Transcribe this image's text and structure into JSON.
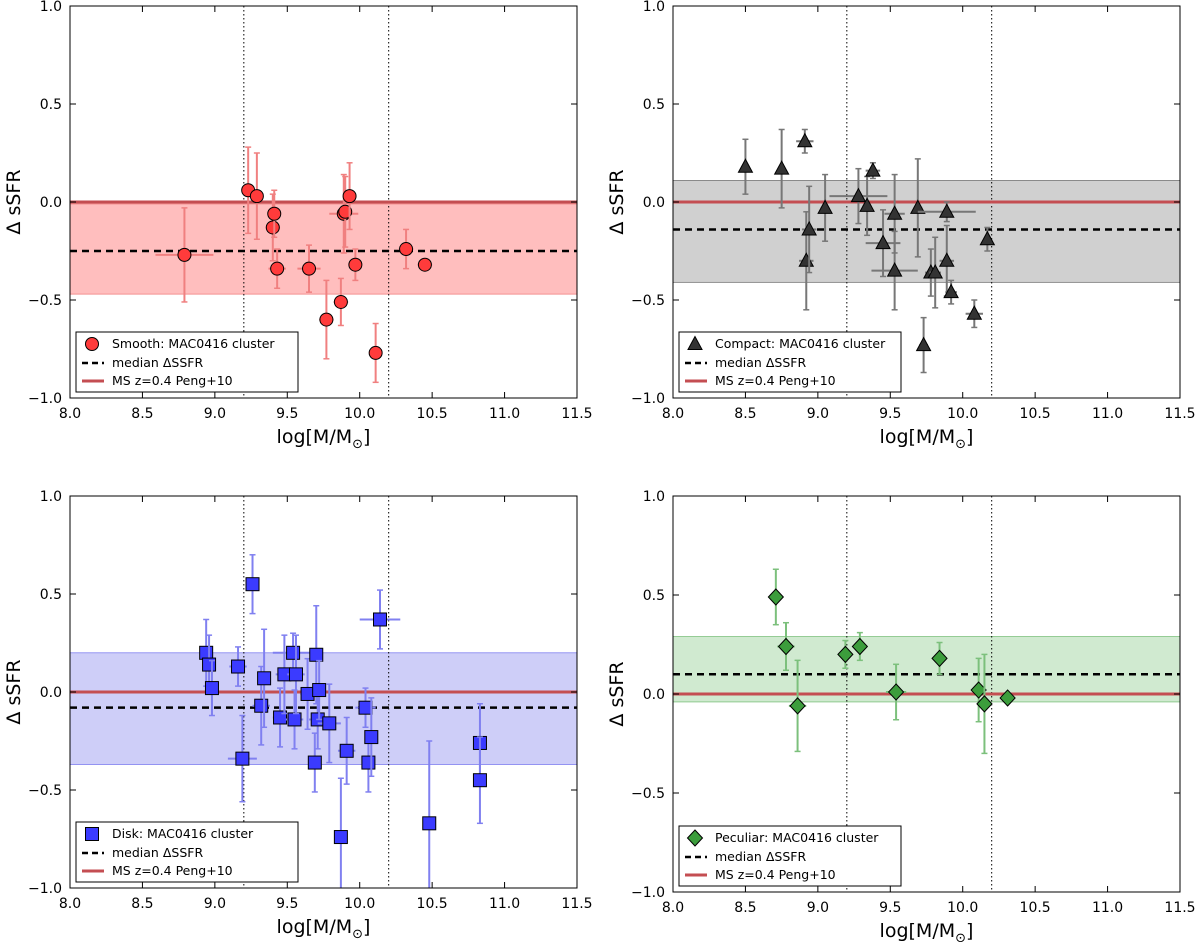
{
  "figure": {
    "ylabel": "Δ sSFR",
    "xlabel_main": "log[M/M",
    "xlabel_sub": "⊙",
    "xlabel_close": "]",
    "xlim": [
      8.0,
      11.5
    ],
    "ylim": [
      -1.0,
      1.0
    ],
    "xticks": [
      "8.0",
      "8.5",
      "9.0",
      "9.5",
      "10.0",
      "10.5",
      "11.0",
      "11.5"
    ],
    "yticks": [
      "−1.0",
      "−0.5",
      "0.0",
      "0.5",
      "1.0"
    ],
    "xtick_values": [
      8.0,
      8.5,
      9.0,
      9.5,
      10.0,
      10.5,
      11.0,
      11.5
    ],
    "ytick_values": [
      -1.0,
      -0.5,
      0.0,
      0.5,
      1.0
    ],
    "vlines": [
      9.2,
      10.2
    ],
    "legend_median": "median ΔSSFR",
    "legend_ms": "MS z=0.4 Peng+10",
    "ms_color": "#c44e52"
  },
  "chart_data": [
    {
      "type": "scatter",
      "title": "Smooth",
      "legend_label": "Smooth: MAC0416 cluster",
      "marker": "circle",
      "color": "#ff3b3b",
      "errcolor": "#f08080",
      "band_color": "#ffb3b3",
      "band": [
        -0.47,
        -0.01
      ],
      "median": -0.25,
      "ms_line": 0.0,
      "xlim": [
        8.0,
        11.5
      ],
      "ylim": [
        -1.0,
        1.0
      ],
      "points": [
        {
          "x": 8.79,
          "y": -0.27,
          "xerr": 0.2,
          "yerr": 0.24
        },
        {
          "x": 9.23,
          "y": 0.06,
          "xerr": 0.03,
          "yerr": 0.22
        },
        {
          "x": 9.29,
          "y": 0.03,
          "xerr": 0.03,
          "yerr": 0.22
        },
        {
          "x": 9.4,
          "y": -0.13,
          "xerr": 0.05,
          "yerr": 0.17
        },
        {
          "x": 9.41,
          "y": -0.06,
          "xerr": 0.03,
          "yerr": 0.12
        },
        {
          "x": 9.43,
          "y": -0.34,
          "xerr": 0.06,
          "yerr": 0.1
        },
        {
          "x": 9.65,
          "y": -0.34,
          "xerr": 0.08,
          "yerr": 0.12
        },
        {
          "x": 9.77,
          "y": -0.6,
          "xerr": 0.05,
          "yerr": 0.2
        },
        {
          "x": 9.87,
          "y": -0.51,
          "xerr": 0.05,
          "yerr": 0.12
        },
        {
          "x": 9.89,
          "y": -0.06,
          "xerr": 0.1,
          "yerr": 0.2
        },
        {
          "x": 9.9,
          "y": -0.05,
          "xerr": 0.04,
          "yerr": 0.18
        },
        {
          "x": 9.93,
          "y": 0.03,
          "xerr": 0.03,
          "yerr": 0.17
        },
        {
          "x": 9.97,
          "y": -0.32,
          "xerr": 0.04,
          "yerr": 0.08
        },
        {
          "x": 10.11,
          "y": -0.77,
          "xerr": 0.04,
          "yerr": 0.15
        },
        {
          "x": 10.32,
          "y": -0.24,
          "xerr": 0.05,
          "yerr": 0.1
        },
        {
          "x": 10.45,
          "y": -0.32,
          "xerr": 0.05,
          "yerr": 0.0
        }
      ]
    },
    {
      "type": "scatter",
      "title": "Compact",
      "legend_label": "Compact: MAC0416 cluster",
      "marker": "triangle",
      "color": "#333333",
      "errcolor": "#777777",
      "band_color": "#c8c8c8",
      "band": [
        -0.41,
        0.11
      ],
      "median": -0.14,
      "ms_line": 0.0,
      "xlim": [
        8.0,
        11.5
      ],
      "ylim": [
        -1.0,
        1.0
      ],
      "points": [
        {
          "x": 8.5,
          "y": 0.18,
          "xerr": 0.0,
          "yerr": 0.14
        },
        {
          "x": 8.75,
          "y": 0.17,
          "xerr": 0.0,
          "yerr": 0.2
        },
        {
          "x": 8.91,
          "y": 0.31,
          "xerr": 0.06,
          "yerr": 0.06
        },
        {
          "x": 8.92,
          "y": -0.3,
          "xerr": 0.05,
          "yerr": 0.25
        },
        {
          "x": 8.94,
          "y": -0.14,
          "xerr": 0.05,
          "yerr": 0.22
        },
        {
          "x": 9.05,
          "y": -0.03,
          "xerr": 0.03,
          "yerr": 0.17
        },
        {
          "x": 9.28,
          "y": 0.03,
          "xerr": 0.2,
          "yerr": 0.14
        },
        {
          "x": 9.34,
          "y": -0.02,
          "xerr": 0.03,
          "yerr": 0.15
        },
        {
          "x": 9.38,
          "y": 0.16,
          "xerr": 0.05,
          "yerr": 0.04
        },
        {
          "x": 9.45,
          "y": -0.21,
          "xerr": 0.12,
          "yerr": 0.17
        },
        {
          "x": 9.53,
          "y": -0.35,
          "xerr": 0.16,
          "yerr": 0.2
        },
        {
          "x": 9.53,
          "y": -0.06,
          "xerr": 0.07,
          "yerr": 0.2
        },
        {
          "x": 9.69,
          "y": -0.03,
          "xerr": 0.03,
          "yerr": 0.25
        },
        {
          "x": 9.73,
          "y": -0.73,
          "xerr": 0.03,
          "yerr": 0.14
        },
        {
          "x": 9.78,
          "y": -0.36,
          "xerr": 0.04,
          "yerr": 0.12
        },
        {
          "x": 9.81,
          "y": -0.36,
          "xerr": 0.04,
          "yerr": 0.18
        },
        {
          "x": 9.89,
          "y": -0.05,
          "xerr": 0.2,
          "yerr": 0.05
        },
        {
          "x": 9.89,
          "y": -0.3,
          "xerr": 0.05,
          "yerr": 0.18
        },
        {
          "x": 9.92,
          "y": -0.46,
          "xerr": 0.04,
          "yerr": 0.06
        },
        {
          "x": 10.08,
          "y": -0.57,
          "xerr": 0.06,
          "yerr": 0.07
        },
        {
          "x": 10.17,
          "y": -0.19,
          "xerr": 0.02,
          "yerr": 0.06
        }
      ]
    },
    {
      "type": "scatter",
      "title": "Disk",
      "legend_label": "Disk: MAC0416 cluster",
      "marker": "square",
      "color": "#3b3bff",
      "errcolor": "#8080f0",
      "band_color": "#c5c5f7",
      "band": [
        -0.37,
        0.2
      ],
      "median": -0.08,
      "ms_line": 0.0,
      "xlim": [
        8.0,
        11.5
      ],
      "ylim": [
        -1.0,
        1.0
      ],
      "points": [
        {
          "x": 8.94,
          "y": 0.2,
          "xerr": 0.04,
          "yerr": 0.17
        },
        {
          "x": 8.96,
          "y": 0.14,
          "xerr": 0.03,
          "yerr": 0.15
        },
        {
          "x": 8.98,
          "y": 0.02,
          "xerr": 0.04,
          "yerr": 0.14
        },
        {
          "x": 9.16,
          "y": 0.13,
          "xerr": 0.06,
          "yerr": 0.1
        },
        {
          "x": 9.19,
          "y": -0.34,
          "xerr": 0.1,
          "yerr": 0.22
        },
        {
          "x": 9.26,
          "y": 0.55,
          "xerr": 0.02,
          "yerr": 0.15
        },
        {
          "x": 9.32,
          "y": -0.07,
          "xerr": 0.06,
          "yerr": 0.2
        },
        {
          "x": 9.34,
          "y": 0.07,
          "xerr": 0.04,
          "yerr": 0.25
        },
        {
          "x": 9.45,
          "y": -0.13,
          "xerr": 0.05,
          "yerr": 0.15
        },
        {
          "x": 9.48,
          "y": 0.09,
          "xerr": 0.06,
          "yerr": 0.2
        },
        {
          "x": 9.54,
          "y": 0.2,
          "xerr": 0.14,
          "yerr": 0.1
        },
        {
          "x": 9.55,
          "y": -0.14,
          "xerr": 0.06,
          "yerr": 0.15
        },
        {
          "x": 9.56,
          "y": 0.09,
          "xerr": 0.06,
          "yerr": 0.2
        },
        {
          "x": 9.64,
          "y": -0.01,
          "xerr": 0.05,
          "yerr": 0.18
        },
        {
          "x": 9.69,
          "y": -0.36,
          "xerr": 0.04,
          "yerr": 0.15
        },
        {
          "x": 9.7,
          "y": 0.19,
          "xerr": 0.03,
          "yerr": 0.25
        },
        {
          "x": 9.71,
          "y": -0.14,
          "xerr": 0.06,
          "yerr": 0.15
        },
        {
          "x": 9.72,
          "y": 0.01,
          "xerr": 0.04,
          "yerr": 0.15
        },
        {
          "x": 9.79,
          "y": -0.16,
          "xerr": 0.08,
          "yerr": 0.2
        },
        {
          "x": 9.87,
          "y": -0.74,
          "xerr": 0.04,
          "yerr": 0.3
        },
        {
          "x": 9.91,
          "y": -0.3,
          "xerr": 0.06,
          "yerr": 0.17
        },
        {
          "x": 10.04,
          "y": -0.08,
          "xerr": 0.07,
          "yerr": 0.1
        },
        {
          "x": 10.06,
          "y": -0.36,
          "xerr": 0.04,
          "yerr": 0.15
        },
        {
          "x": 10.08,
          "y": -0.23,
          "xerr": 0.04,
          "yerr": 0.2
        },
        {
          "x": 10.14,
          "y": 0.37,
          "xerr": 0.14,
          "yerr": 0.15
        },
        {
          "x": 10.48,
          "y": -0.67,
          "xerr": 0.02,
          "yerr": 0.42
        },
        {
          "x": 10.83,
          "y": -0.26,
          "xerr": 0.0,
          "yerr": 0.2
        },
        {
          "x": 10.83,
          "y": -0.45,
          "xerr": 0.0,
          "yerr": 0.22
        }
      ]
    },
    {
      "type": "scatter",
      "title": "Peculiar",
      "legend_label": "Peculiar: MAC0416 cluster",
      "marker": "diamond",
      "color": "#3c9d3c",
      "errcolor": "#7cc07c",
      "band_color": "#c8e6c8",
      "band": [
        -0.04,
        0.29
      ],
      "median": 0.1,
      "ms_line": 0.0,
      "xlim": [
        8.0,
        11.5
      ],
      "ylim": [
        -1.0,
        1.0
      ],
      "points": [
        {
          "x": 8.71,
          "y": 0.49,
          "xerr": 0.03,
          "yerr": 0.14
        },
        {
          "x": 8.78,
          "y": 0.24,
          "xerr": 0.06,
          "yerr": 0.12
        },
        {
          "x": 8.86,
          "y": -0.06,
          "xerr": 0.06,
          "yerr": 0.23
        },
        {
          "x": 9.19,
          "y": 0.2,
          "xerr": 0.03,
          "yerr": 0.07
        },
        {
          "x": 9.29,
          "y": 0.24,
          "xerr": 0.05,
          "yerr": 0.07
        },
        {
          "x": 9.54,
          "y": 0.01,
          "xerr": 0.07,
          "yerr": 0.14
        },
        {
          "x": 9.84,
          "y": 0.18,
          "xerr": 0.03,
          "yerr": 0.08
        },
        {
          "x": 10.11,
          "y": 0.02,
          "xerr": 0.04,
          "yerr": 0.16
        },
        {
          "x": 10.15,
          "y": -0.05,
          "xerr": 0.05,
          "yerr": 0.25
        },
        {
          "x": 10.31,
          "y": -0.02,
          "xerr": 0.04,
          "yerr": 0.0
        }
      ]
    }
  ]
}
